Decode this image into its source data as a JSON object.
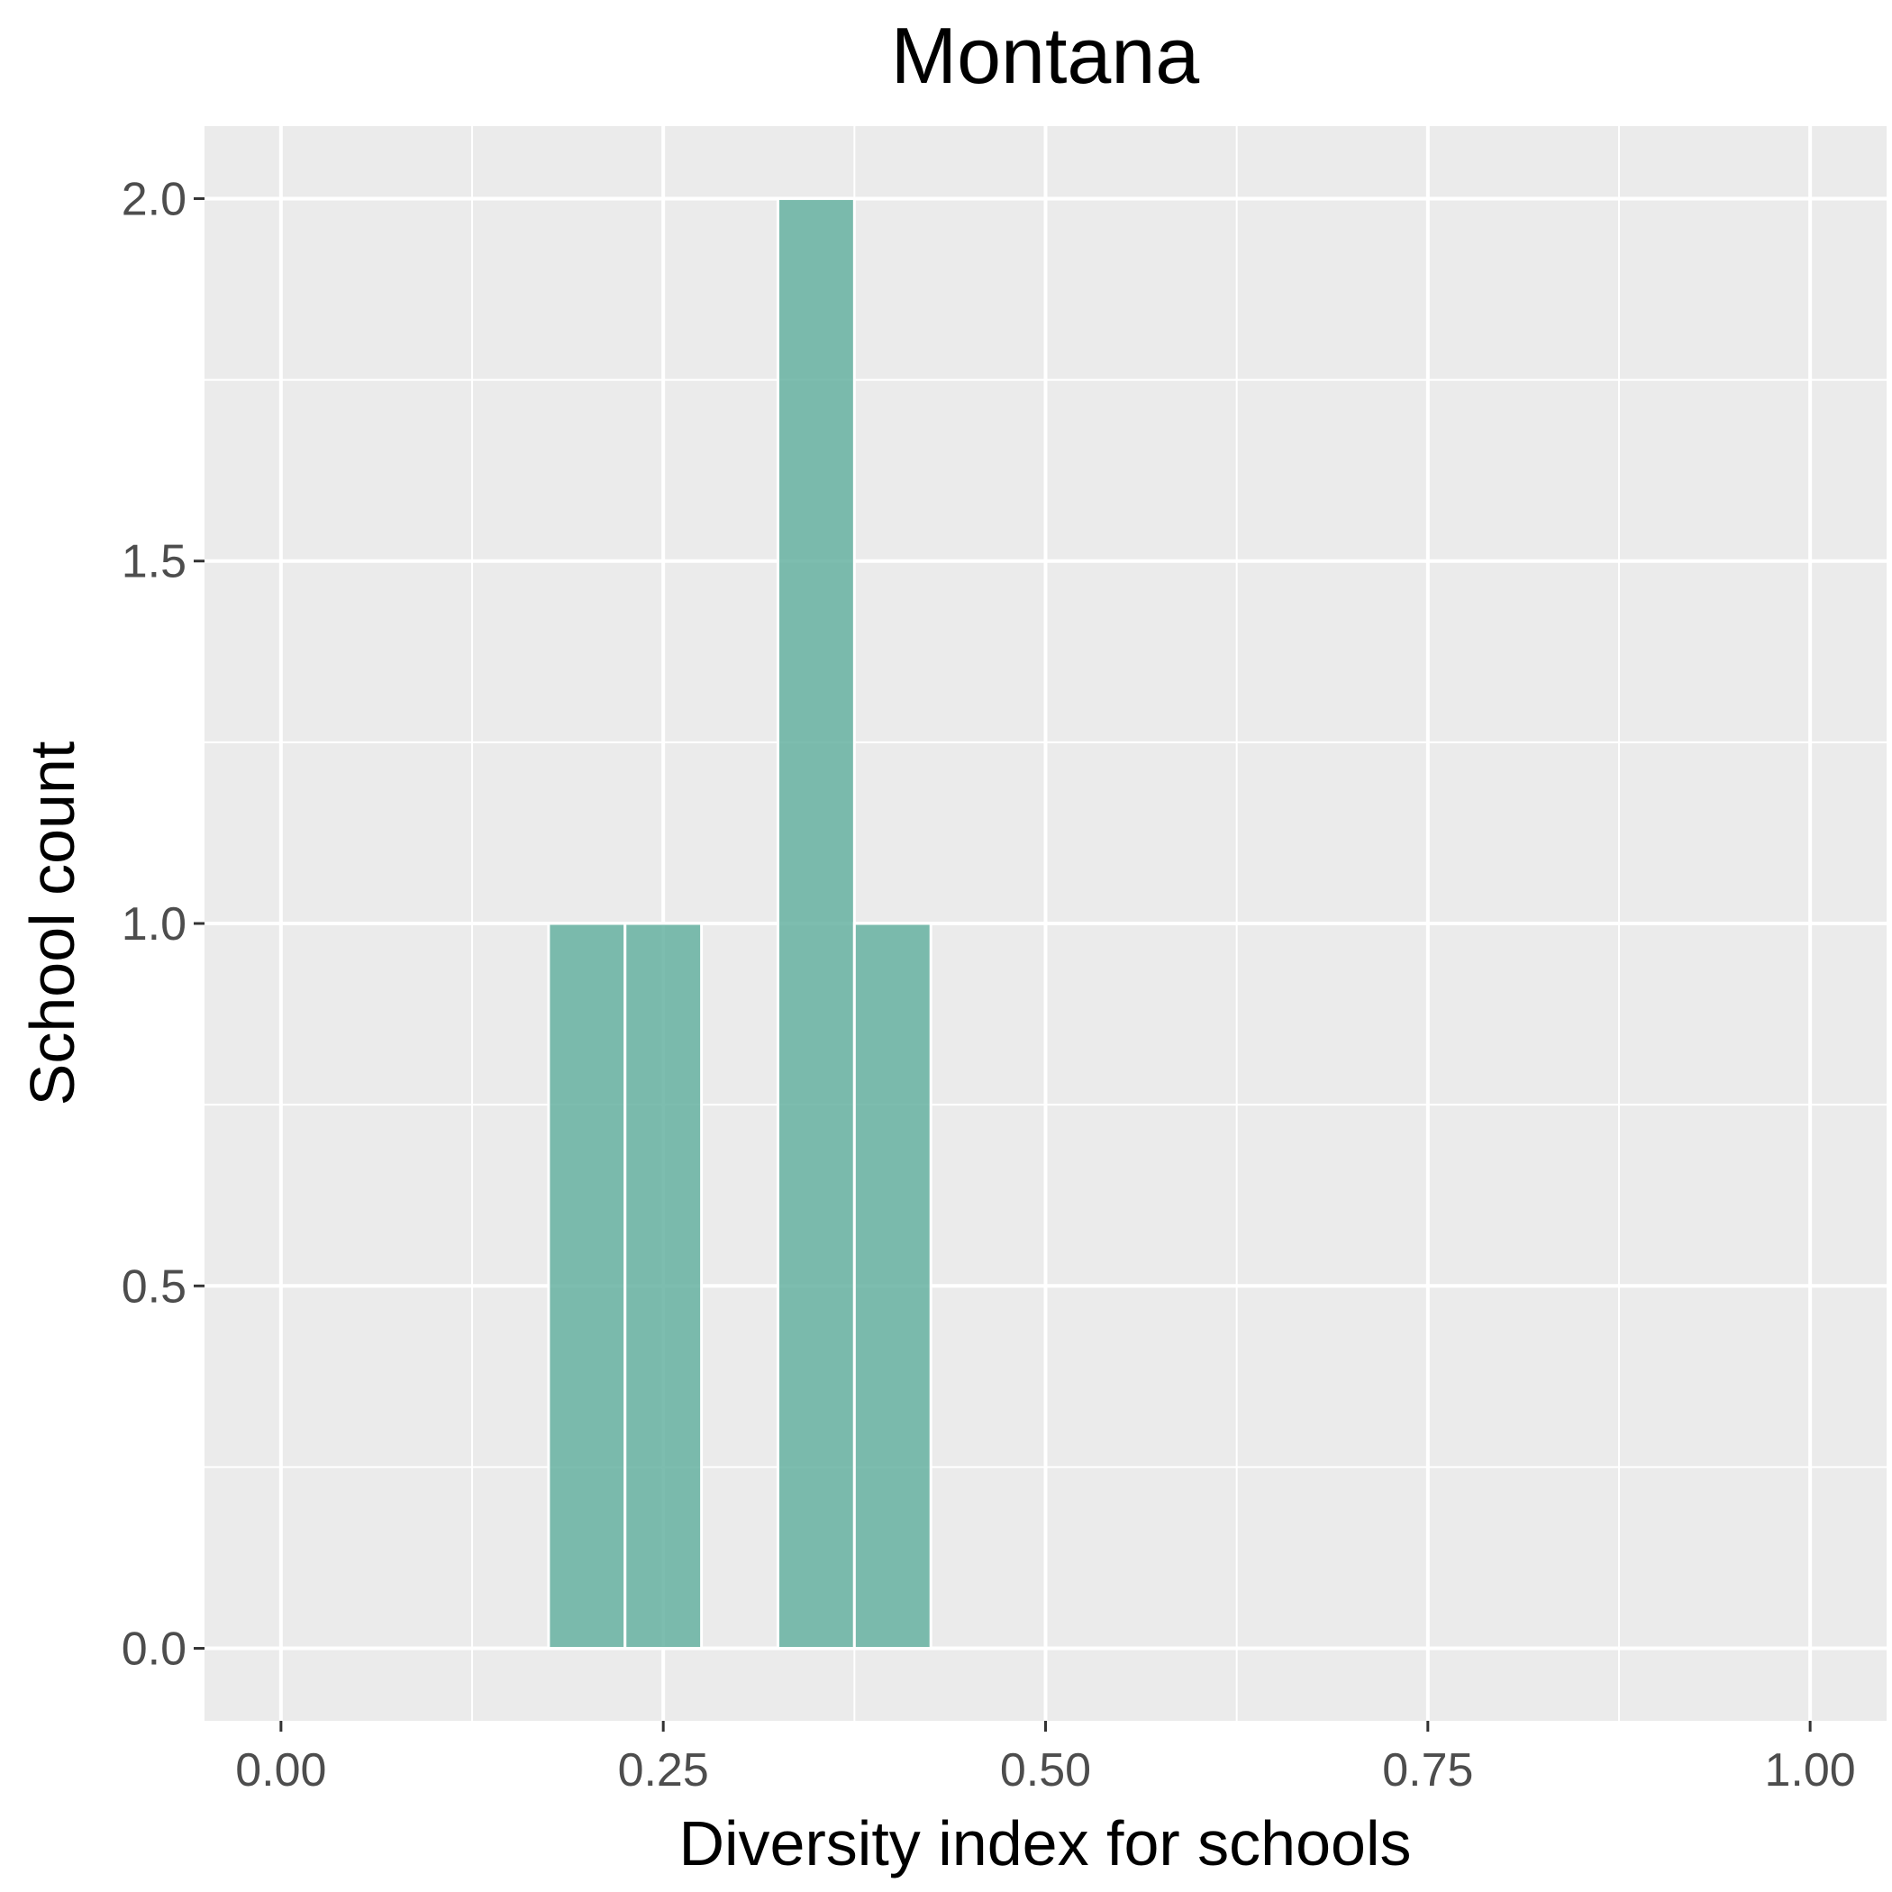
{
  "chart_data": {
    "type": "bar",
    "title": "Montana",
    "xlabel": "Diversity index for schools",
    "ylabel": "School count",
    "bin_width": 0.05,
    "x": [
      0.0,
      0.05,
      0.1,
      0.15,
      0.2,
      0.25,
      0.3,
      0.35,
      0.4,
      0.45,
      0.5,
      0.55,
      0.6,
      0.65,
      0.7,
      0.75,
      0.8,
      0.85,
      0.9,
      0.95
    ],
    "values": [
      0,
      0,
      0,
      0,
      1,
      1,
      0,
      2,
      1,
      0,
      0,
      0,
      0,
      0,
      0,
      0,
      0,
      0,
      0,
      0
    ],
    "xlim": [
      -0.05,
      1.05
    ],
    "ylim": [
      -0.1,
      2.1
    ],
    "x_ticks": [
      0.0,
      0.25,
      0.5,
      0.75,
      1.0
    ],
    "x_tick_labels": [
      "0.00",
      "0.25",
      "0.50",
      "0.75",
      "1.00"
    ],
    "y_ticks": [
      0.0,
      0.5,
      1.0,
      1.5,
      2.0
    ],
    "y_tick_labels": [
      "0.0",
      "0.5",
      "1.0",
      "1.5",
      "2.0"
    ],
    "grid": true,
    "colors": {
      "bar": "#66b2a1",
      "panel": "#ebebeb",
      "grid": "#ffffff"
    }
  }
}
